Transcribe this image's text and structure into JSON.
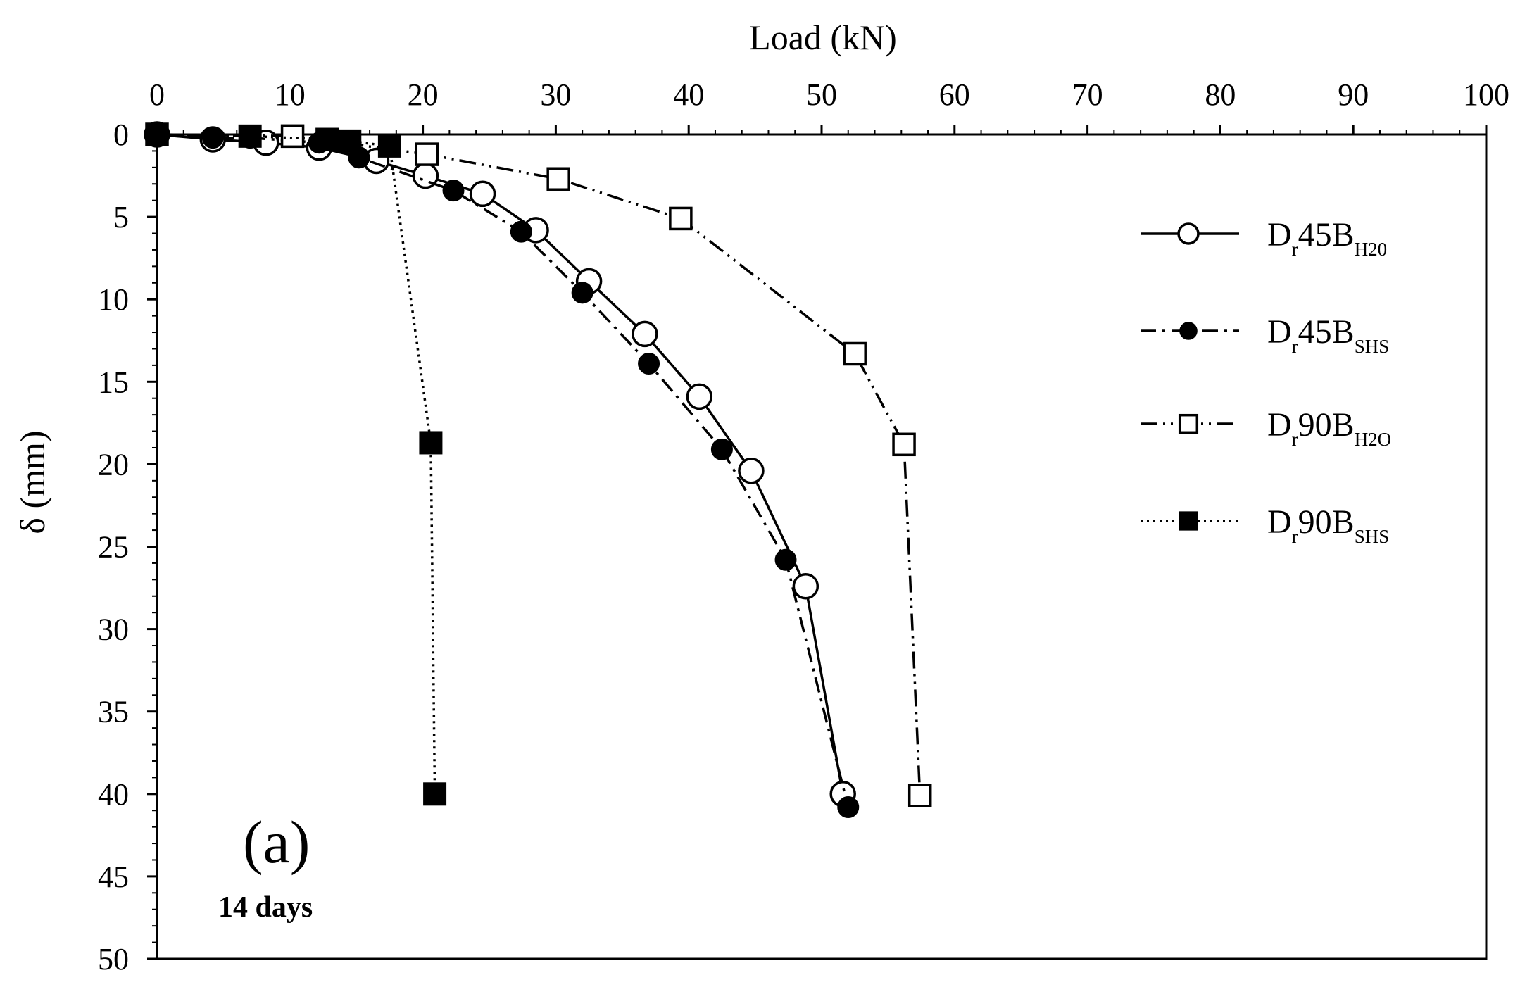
{
  "chart_data": {
    "type": "line",
    "title": "",
    "xlabel": "Load (kN)",
    "ylabel": "δ (mm)",
    "xlim": [
      0,
      100
    ],
    "ylim": [
      0,
      50
    ],
    "y_inverted": true,
    "x_axis_position": "top",
    "x_ticks": [
      0,
      10,
      20,
      30,
      40,
      50,
      60,
      70,
      80,
      90,
      100
    ],
    "y_ticks": [
      0,
      5,
      10,
      15,
      20,
      25,
      30,
      35,
      40,
      45,
      50
    ],
    "grid": false,
    "legend_position": "right",
    "panel_label": "(a)",
    "panel_note": "14 days",
    "series": [
      {
        "name": "Dr45BH20",
        "legend": {
          "main": "D",
          "sub1": "r",
          "mid": "45B",
          "sub2": "H20"
        },
        "line_style": "solid",
        "marker": "open-circle",
        "x": [
          0,
          4.2,
          8.2,
          12.2,
          16.5,
          20.2,
          24.5,
          28.5,
          32.5,
          36.7,
          40.8,
          44.7,
          48.8,
          51.6
        ],
        "y": [
          0,
          0.3,
          0.5,
          0.8,
          1.6,
          2.5,
          3.6,
          5.8,
          8.9,
          12.1,
          15.9,
          20.4,
          27.4,
          40.0
        ]
      },
      {
        "name": "Dr45BSHS",
        "legend": {
          "main": "D",
          "sub1": "r",
          "mid": "45B",
          "sub2": "SHS"
        },
        "line_style": "dash-dot",
        "marker": "filled-circle",
        "x": [
          0,
          4.2,
          7.0,
          12.2,
          15.2,
          22.3,
          27.4,
          32.0,
          37.0,
          42.5,
          47.3,
          52.0
        ],
        "y": [
          0,
          0.2,
          0.2,
          0.5,
          1.4,
          3.4,
          5.9,
          9.6,
          13.9,
          19.1,
          25.8,
          40.8
        ]
      },
      {
        "name": "Dr90BH2O",
        "legend": {
          "main": "D",
          "sub1": "r",
          "mid": "90B",
          "sub2": "H2O"
        },
        "line_style": "dash-dot-dot",
        "marker": "open-square",
        "x": [
          0,
          10.2,
          20.3,
          30.2,
          39.4,
          52.5,
          56.2,
          57.4
        ],
        "y": [
          0,
          0.1,
          1.2,
          2.7,
          5.1,
          13.3,
          18.8,
          40.1
        ]
      },
      {
        "name": "Dr90BSHS",
        "legend": {
          "main": "D",
          "sub1": "r",
          "mid": "90B",
          "sub2": "SHS"
        },
        "line_style": "dotted",
        "marker": "filled-square",
        "x": [
          0,
          7.0,
          12.8,
          14.5,
          17.5,
          20.6,
          20.9
        ],
        "y": [
          0,
          0.1,
          0.3,
          0.4,
          0.7,
          18.7,
          40.0
        ]
      }
    ]
  }
}
